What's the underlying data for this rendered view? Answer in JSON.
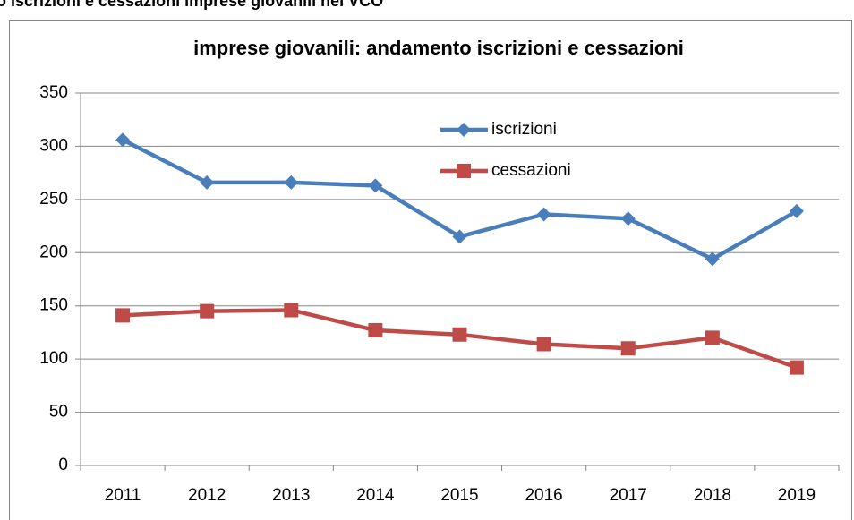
{
  "heading": "o iscrizioni e cessazioni imprese giovanili nel VCO",
  "chart_data": {
    "type": "line",
    "title": "imprese giovanili: andamento iscrizioni e cessazioni",
    "categories": [
      "2011",
      "2012",
      "2013",
      "2014",
      "2015",
      "2016",
      "2017",
      "2018",
      "2019"
    ],
    "series": [
      {
        "name": "iscrizioni",
        "color": "#4a7ebb",
        "marker": "diamond",
        "values": [
          306,
          266,
          266,
          263,
          215,
          236,
          232,
          194,
          239
        ]
      },
      {
        "name": "cessazioni",
        "color": "#be4b48",
        "marker": "square",
        "values": [
          141,
          145,
          146,
          127,
          123,
          114,
          110,
          120,
          92
        ]
      }
    ],
    "ylim": [
      0,
      350
    ],
    "yticks": [
      0,
      50,
      100,
      150,
      200,
      250,
      300,
      350
    ],
    "grid": true
  }
}
